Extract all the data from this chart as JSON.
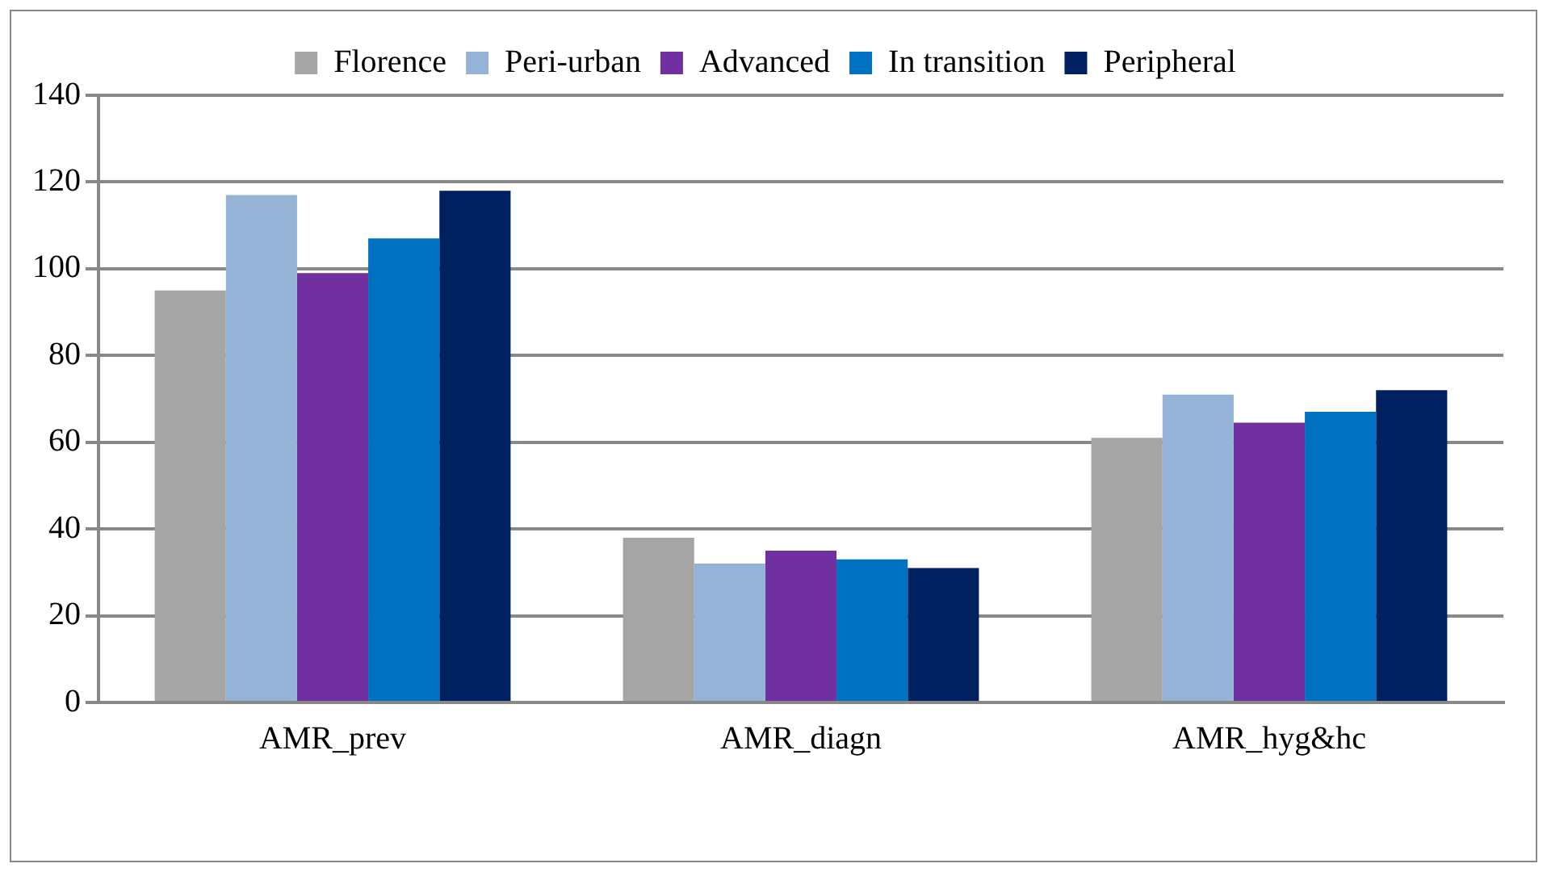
{
  "chart_data": {
    "type": "bar",
    "categories": [
      "AMR_prev",
      "AMR_diagn",
      "AMR_hyg&hc"
    ],
    "series": [
      {
        "name": "Florence",
        "color": "#a5a5a5",
        "values": [
          95,
          38,
          61
        ]
      },
      {
        "name": "Peri-urban",
        "color": "#95b3d7",
        "values": [
          117,
          32,
          71
        ]
      },
      {
        "name": "Advanced",
        "color": "#7030a0",
        "values": [
          99,
          35,
          64.5
        ]
      },
      {
        "name": "In transition",
        "color": "#0070c0",
        "values": [
          107,
          33,
          67
        ]
      },
      {
        "name": "Peripheral",
        "color": "#002060",
        "values": [
          118,
          31,
          72
        ]
      }
    ],
    "ylim": [
      0,
      140
    ],
    "yticks": [
      0,
      20,
      40,
      60,
      80,
      100,
      120,
      140
    ],
    "grid": "y",
    "legend": "top"
  }
}
